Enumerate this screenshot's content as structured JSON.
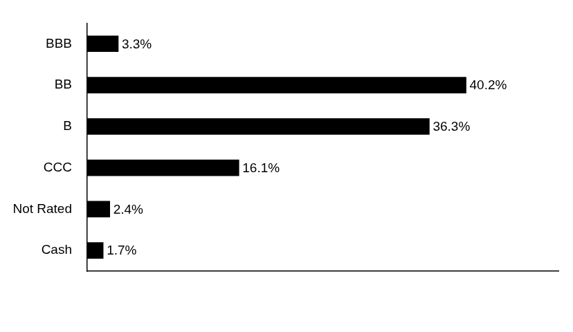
{
  "chart_data": {
    "type": "bar",
    "orientation": "horizontal",
    "categories": [
      "BBB",
      "BB",
      "B",
      "CCC",
      "Not Rated",
      "Cash"
    ],
    "values": [
      3.3,
      40.2,
      36.3,
      16.1,
      2.4,
      1.7
    ],
    "value_labels": [
      "3.3%",
      "40.2%",
      "36.3%",
      "16.1%",
      "2.4%",
      "1.7%"
    ],
    "color": "#000000",
    "xlim": [
      0,
      50
    ],
    "grid": false,
    "data_labels": true,
    "tick_labels": "y"
  }
}
